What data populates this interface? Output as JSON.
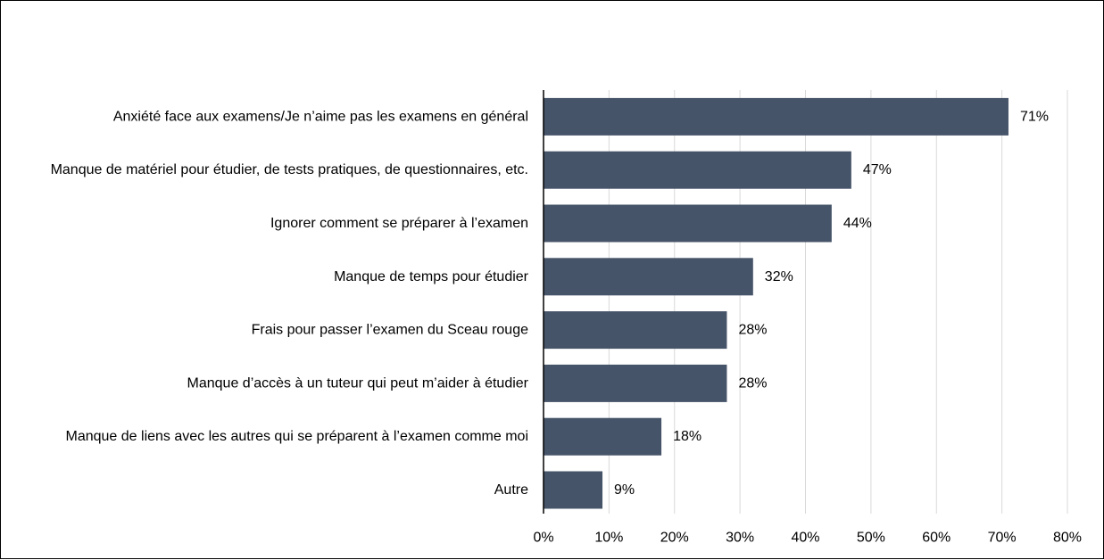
{
  "chart_data": {
    "type": "bar",
    "orientation": "horizontal",
    "categories": [
      "Anxiété face aux examens/Je n’aime pas les examens en général",
      "Manque de matériel pour étudier, de tests pratiques, de questionnaires, etc.",
      "Ignorer comment se préparer à l’examen",
      "Manque de temps pour étudier",
      "Frais pour passer l’examen du Sceau rouge",
      "Manque d’accès à un tuteur qui peut m’aider à étudier",
      "Manque de liens avec les autres qui se préparent à l’examen comme moi",
      "Autre"
    ],
    "values": [
      71,
      47,
      44,
      32,
      28,
      28,
      18,
      9
    ],
    "data_labels": [
      "71%",
      "47%",
      "44%",
      "32%",
      "28%",
      "28%",
      "18%",
      "9%"
    ],
    "xlim": [
      0,
      80
    ],
    "x_ticks": [
      0,
      10,
      20,
      30,
      40,
      50,
      60,
      70,
      80
    ],
    "x_tick_labels": [
      "0%",
      "10%",
      "20%",
      "30%",
      "40%",
      "50%",
      "60%",
      "70%",
      "80%"
    ],
    "grid": "vertical",
    "legend": "none",
    "colors": {
      "bar": "#465469",
      "grid": "#d9d9d9",
      "axis": "#000000"
    }
  }
}
